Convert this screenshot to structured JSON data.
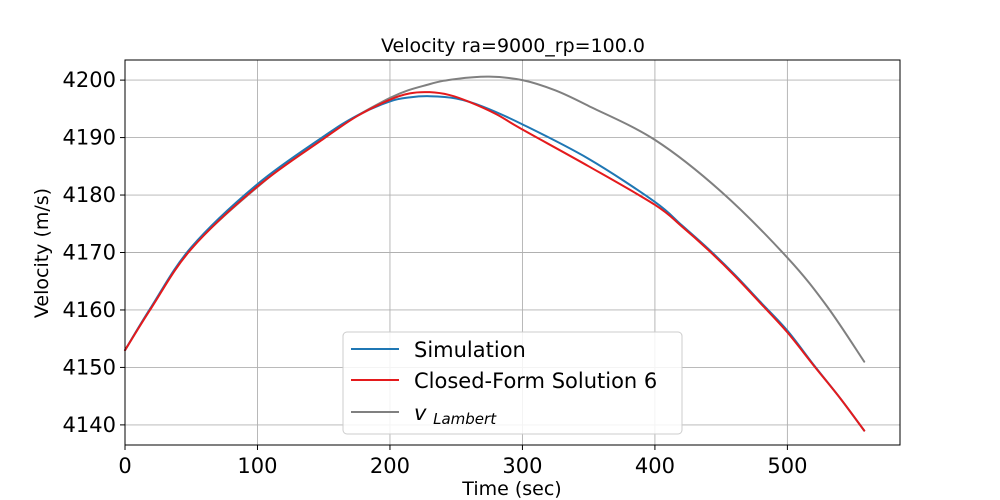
{
  "chart_data": {
    "type": "line",
    "title": "Velocity ra=9000_rp=100.0",
    "xlabel": "Time (sec)",
    "ylabel": "Velocity (m/s)",
    "xlim": [
      0,
      585
    ],
    "ylim": [
      4136.5,
      4203.5
    ],
    "xticks": [
      0,
      100,
      200,
      300,
      400,
      500
    ],
    "yticks": [
      4140,
      4150,
      4160,
      4170,
      4180,
      4190,
      4200
    ],
    "grid": true,
    "legend_position": "lower-center",
    "series": [
      {
        "name": "Simulation",
        "color": "#1f77b4",
        "x": [
          0,
          20,
          50,
          100,
          150,
          175,
          200,
          215,
          230,
          250,
          270,
          300,
          350,
          400,
          420,
          440,
          460,
          480,
          500,
          520,
          540,
          558
        ],
        "y": [
          4153.0,
          4160.6,
          4170.9,
          4181.9,
          4190.2,
          4193.8,
          4196.3,
          4197.0,
          4197.2,
          4196.8,
          4195.4,
          4192.3,
          4186.3,
          4178.8,
          4174.8,
          4170.7,
          4166.2,
          4161.3,
          4156.4,
          4150.4,
          4144.6,
          4139.0
        ]
      },
      {
        "name": "Closed-Form Solution 6",
        "color": "#e41a1c",
        "x": [
          0,
          20,
          50,
          100,
          150,
          175,
          200,
          215,
          230,
          245,
          260,
          280,
          300,
          350,
          400,
          420,
          440,
          460,
          480,
          500,
          520,
          540,
          558
        ],
        "y": [
          4153.0,
          4160.4,
          4170.6,
          4181.5,
          4189.8,
          4193.7,
          4196.6,
          4197.7,
          4197.9,
          4197.4,
          4196.2,
          4194.1,
          4191.4,
          4185.0,
          4178.3,
          4174.6,
          4170.5,
          4166.0,
          4161.1,
          4156.1,
          4150.3,
          4144.6,
          4139.0
        ]
      },
      {
        "name": "v_Lambert",
        "color": "#808080",
        "x": [
          0,
          20,
          50,
          100,
          150,
          200,
          230,
          250,
          275,
          300,
          325,
          350,
          400,
          450,
          500,
          530,
          558
        ],
        "y": [
          4153.0,
          4160.5,
          4170.7,
          4181.4,
          4190.2,
          4196.9,
          4199.3,
          4200.2,
          4200.6,
          4200.0,
          4198.2,
          4195.5,
          4189.6,
          4180.6,
          4169.1,
          4160.6,
          4151.0
        ]
      }
    ],
    "legend": {
      "entries": [
        {
          "label": "Simulation",
          "color": "#1f77b4",
          "math": false
        },
        {
          "label": "Closed-Form Solution 6",
          "color": "#e41a1c",
          "math": false
        },
        {
          "label_main": "v",
          "label_sub": "Lambert",
          "color": "#808080",
          "math": true
        }
      ]
    }
  }
}
